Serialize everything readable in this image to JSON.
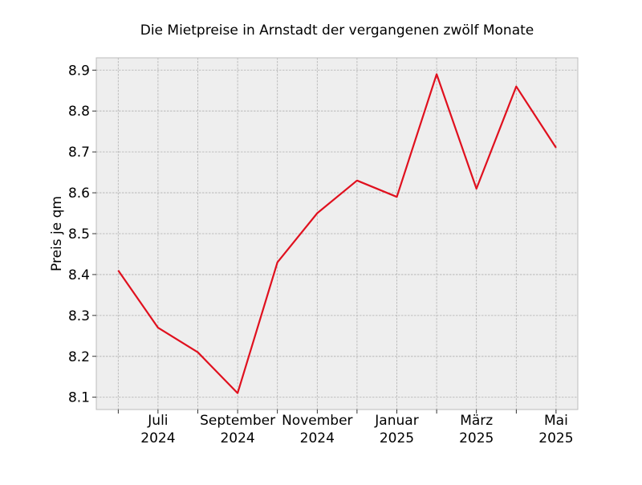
{
  "chart_data": {
    "type": "line",
    "title": "Die Mietpreise in Arnstadt der vergangenen zwölf Monate",
    "xlabel": "",
    "ylabel": "Preis je qm",
    "x": [
      "2024-06",
      "2024-07",
      "2024-08",
      "2024-09",
      "2024-10",
      "2024-11",
      "2024-12",
      "2025-01",
      "2025-02",
      "2025-03",
      "2025-04",
      "2025-05"
    ],
    "x_tick_labels": [
      {
        "line1": "Juli",
        "line2": "2024"
      },
      {
        "line1": "September",
        "line2": "2024"
      },
      {
        "line1": "November",
        "line2": "2024"
      },
      {
        "line1": "Januar",
        "line2": "2025"
      },
      {
        "line1": "März",
        "line2": "2025"
      },
      {
        "line1": "Mai",
        "line2": "2025"
      }
    ],
    "series": [
      {
        "values": [
          8.41,
          8.27,
          8.21,
          8.11,
          8.43,
          8.55,
          8.63,
          8.59,
          8.89,
          8.61,
          8.86,
          8.71
        ],
        "color": "#e0101e"
      }
    ],
    "y_ticks": [
      "8.1",
      "8.2",
      "8.3",
      "8.4",
      "8.5",
      "8.6",
      "8.7",
      "8.8",
      "8.9"
    ],
    "ylim": [
      8.07,
      8.93
    ],
    "grid": true,
    "background_color": "#eeeeee",
    "grid_color": "#b0b0b0"
  }
}
